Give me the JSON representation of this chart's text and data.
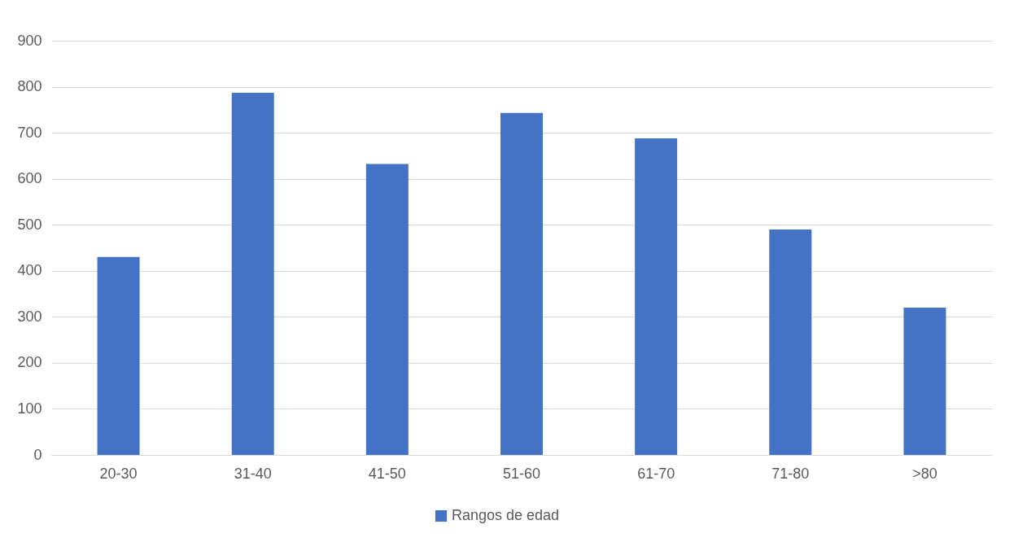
{
  "chart_data": {
    "type": "bar",
    "categories": [
      "20-30",
      "31-40",
      "41-50",
      "51-60",
      "61-70",
      "71-80",
      ">80"
    ],
    "series": [
      {
        "name": "Rangos de edad",
        "color": "#4472c4",
        "values": [
          430,
          787,
          632,
          743,
          688,
          490,
          320
        ]
      }
    ],
    "ylim": [
      0,
      900
    ],
    "yticks": [
      0,
      100,
      200,
      300,
      400,
      500,
      600,
      700,
      800,
      900
    ],
    "grid": "y",
    "legend": "bottom"
  }
}
